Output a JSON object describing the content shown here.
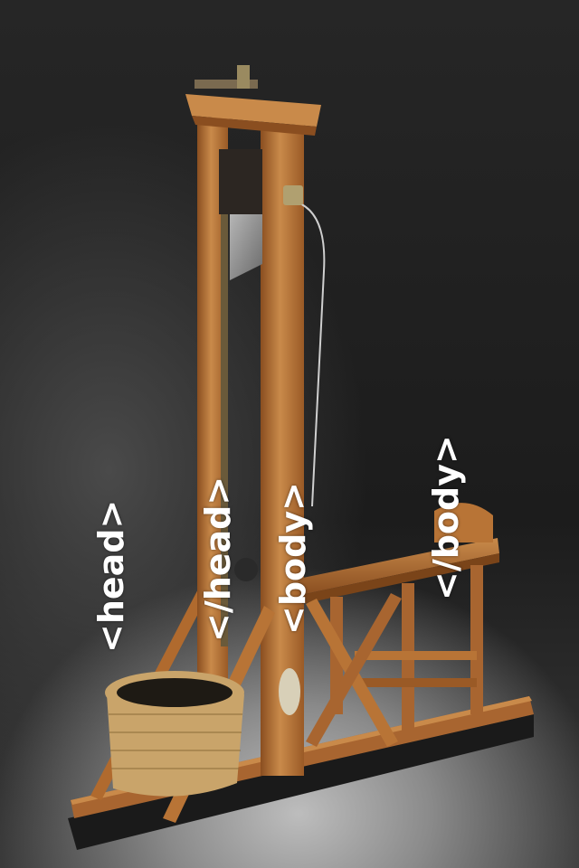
{
  "labels": {
    "head_open": "<head>",
    "head_close": "</head>",
    "body_open": "<body>",
    "body_close": "</body>"
  },
  "colors": {
    "wood": "#b06a2e",
    "wood_light": "#c98a4a",
    "wood_dark": "#7a4419",
    "blade": "#8c8c8c",
    "basket": "#c9a46a",
    "base": "#2a2a2a",
    "label": "#ffffff"
  }
}
